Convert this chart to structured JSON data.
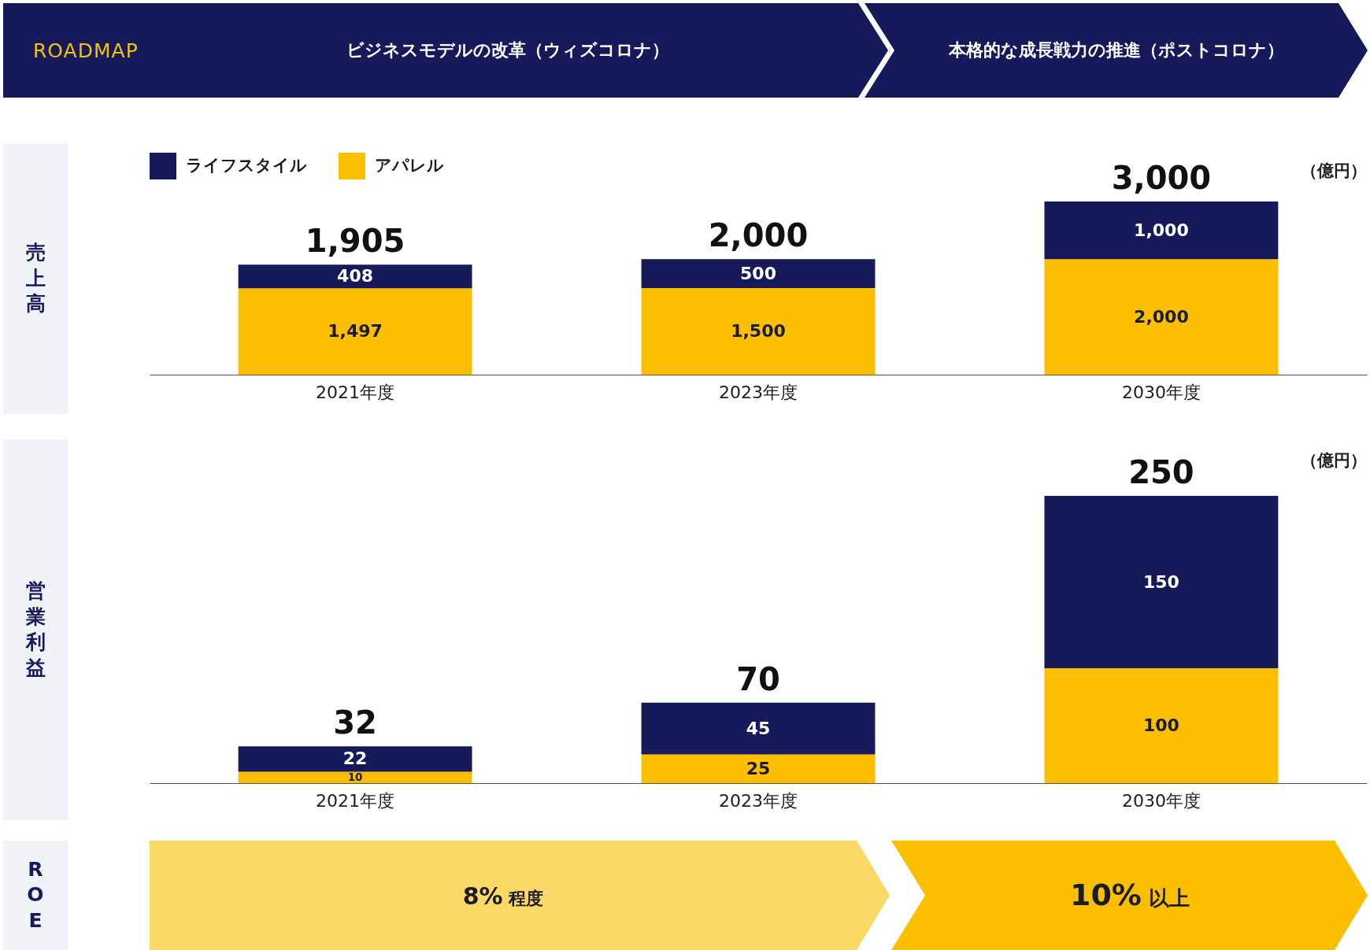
{
  "chart_data": [
    {
      "type": "other",
      "title": "ROADMAP",
      "annotations": [
        "ビジネスモデルの改革（ウィズコロナ）",
        "本格的な成長戦力の推進（ポストコロナ）"
      ]
    },
    {
      "type": "bar",
      "ylabel": "売上高",
      "categories": [
        "2021年度",
        "2023年度",
        "2030年度"
      ],
      "stacked": true,
      "series": [
        {
          "name": "アパレル",
          "color": "#fbbf00",
          "values": [
            1497,
            1500,
            2000
          ],
          "value_labels": [
            "1,497",
            "1,500",
            "2,000"
          ]
        },
        {
          "name": "ライフスタイル",
          "color": "#161a5a",
          "values": [
            408,
            500,
            1000
          ],
          "value_labels": [
            "408",
            "500",
            "1,000"
          ]
        }
      ],
      "totals": [
        "1,905",
        "2,000",
        "3,000"
      ],
      "annotations": [
        "（億円）"
      ],
      "legend": "top left",
      "tick_labels": "x"
    },
    {
      "type": "bar",
      "ylabel": "営業利益",
      "categories": [
        "2021年度",
        "2023年度",
        "2030年度"
      ],
      "stacked": true,
      "series": [
        {
          "color": "#fbbf00",
          "values": [
            10,
            25,
            100
          ],
          "value_labels": [
            "10",
            "25",
            "100"
          ]
        },
        {
          "color": "#161a5a",
          "values": [
            22,
            45,
            150
          ],
          "value_labels": [
            "22",
            "45",
            "150"
          ]
        }
      ],
      "totals": [
        "32",
        "70",
        "250"
      ],
      "annotations": [
        "（億円）"
      ],
      "tick_labels": "x"
    },
    {
      "type": "other",
      "title": "ROE",
      "annotations": [
        "8% 程度",
        "10% 以上"
      ]
    }
  ]
}
